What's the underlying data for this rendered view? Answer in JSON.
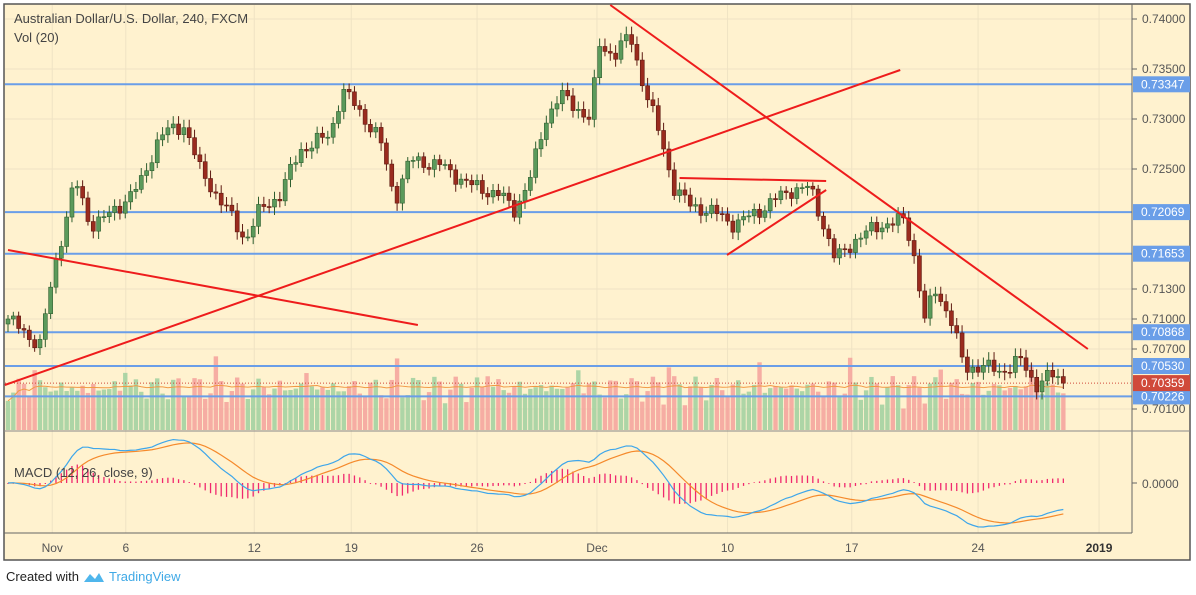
{
  "header": {
    "title": "Australian Dollar/U.S. Dollar, 240, FXCM",
    "volume_label": "Vol (20)"
  },
  "macd": {
    "label": "MACD (12, 26, close, 9)",
    "zero_label": "0.0000"
  },
  "footer": {
    "created_with": "Created with",
    "brand": "TradingView"
  },
  "colors": {
    "background": "#fff2cf",
    "up": "#5b9a5b",
    "down": "#9a2b1e",
    "level": "#6a9ee8",
    "trend": "#ee1c1c",
    "macd": "#3ea6ea",
    "signal": "#f58a2c",
    "hist": "#f0286e",
    "last": "#d04a3a"
  },
  "chart_data": {
    "type": "candlestick",
    "title": "Australian Dollar/U.S. Dollar, 240, FXCM",
    "ylim": [
      0.6989,
      0.7414
    ],
    "bars": 199,
    "y_ticks": [
      "0.74000",
      "0.73500",
      "0.73000",
      "0.72500",
      "0.71300",
      "0.71000",
      "0.70700",
      "0.70100"
    ],
    "x_ticks": [
      {
        "label": "Nov",
        "bar": 8.3
      },
      {
        "label": "6",
        "bar": 22.1
      },
      {
        "label": "12",
        "bar": 46.2
      },
      {
        "label": "19",
        "bar": 64.4
      },
      {
        "label": "26",
        "bar": 88
      },
      {
        "label": "Dec",
        "bar": 110.5
      },
      {
        "label": "10",
        "bar": 135
      },
      {
        "label": "17",
        "bar": 158.3
      },
      {
        "label": "24",
        "bar": 182
      },
      {
        "label": "2019",
        "bar": 204.7
      }
    ],
    "key_closes": [
      [
        0,
        0.71
      ],
      [
        6,
        0.7074
      ],
      [
        8.8,
        0.7154
      ],
      [
        12.6,
        0.7239
      ],
      [
        15.4,
        0.7194
      ],
      [
        19.1,
        0.7204
      ],
      [
        24.8,
        0.7234
      ],
      [
        28.5,
        0.7284
      ],
      [
        33.2,
        0.7294
      ],
      [
        36,
        0.7249
      ],
      [
        41.7,
        0.7204
      ],
      [
        44.5,
        0.7179
      ],
      [
        47.3,
        0.7209
      ],
      [
        51,
        0.7224
      ],
      [
        54.8,
        0.7269
      ],
      [
        60.4,
        0.7284
      ],
      [
        62.7,
        0.7329
      ],
      [
        65.1,
        0.7314
      ],
      [
        69.8,
        0.7279
      ],
      [
        72.6,
        0.7219
      ],
      [
        75.4,
        0.7259
      ],
      [
        81,
        0.7254
      ],
      [
        86.7,
        0.7234
      ],
      [
        92.3,
        0.7224
      ],
      [
        95.1,
        0.7209
      ],
      [
        97.9,
        0.7239
      ],
      [
        100.8,
        0.7299
      ],
      [
        103.6,
        0.7324
      ],
      [
        107.3,
        0.7309
      ],
      [
        109.2,
        0.7299
      ],
      [
        111,
        0.7374
      ],
      [
        113.8,
        0.7364
      ],
      [
        116.7,
        0.7384
      ],
      [
        119.5,
        0.7329
      ],
      [
        122.3,
        0.7284
      ],
      [
        125.1,
        0.7229
      ],
      [
        128,
        0.7214
      ],
      [
        133.6,
        0.7204
      ],
      [
        136.4,
        0.7194
      ],
      [
        141.1,
        0.7209
      ],
      [
        146.7,
        0.7229
      ],
      [
        150.5,
        0.7231
      ],
      [
        152.7,
        0.7199
      ],
      [
        155.2,
        0.7159
      ],
      [
        158.9,
        0.7179
      ],
      [
        163.6,
        0.7194
      ],
      [
        168.3,
        0.7199
      ],
      [
        170.2,
        0.7159
      ],
      [
        172,
        0.7099
      ],
      [
        173.9,
        0.7129
      ],
      [
        176.7,
        0.7104
      ],
      [
        179.5,
        0.7049
      ],
      [
        182.4,
        0.7054
      ],
      [
        186.1,
        0.7047
      ],
      [
        189.9,
        0.7059
      ],
      [
        192.7,
        0.7034
      ],
      [
        195.5,
        0.7044
      ],
      [
        198,
        0.7036
      ]
    ],
    "levels": [
      {
        "label": "0.73347",
        "price": 0.73347
      },
      {
        "label": "0.72069",
        "price": 0.72069
      },
      {
        "label": "0.71653",
        "price": 0.71653
      },
      {
        "label": "0.70868",
        "price": 0.70868
      },
      {
        "label": "0.70530",
        "price": 0.7053
      },
      {
        "label": "0.70226",
        "price": 0.70226
      }
    ],
    "last_price": {
      "label": "0.70359",
      "price": 0.70359
    },
    "trendlines": [
      [
        [
          113,
          0.7414
        ],
        [
          202.6,
          0.707
        ]
      ],
      [
        [
          -0.6,
          0.7034
        ],
        [
          167.4,
          0.7349
        ]
      ],
      [
        [
          0,
          0.7169
        ],
        [
          76.9,
          0.7094
        ]
      ],
      [
        [
          126,
          0.7241
        ],
        [
          153.5,
          0.7238
        ]
      ],
      [
        [
          134.9,
          0.7164
        ],
        [
          153.5,
          0.7229
        ]
      ]
    ]
  }
}
